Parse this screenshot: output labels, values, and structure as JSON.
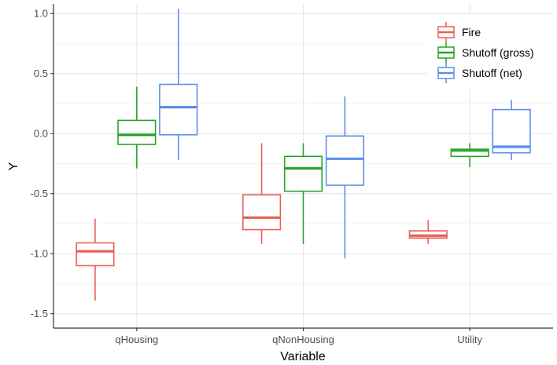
{
  "chart_data": {
    "type": "boxplot",
    "title": "",
    "xlabel": "Variable",
    "ylabel": "Y",
    "ylim": [
      -1.62,
      1.08
    ],
    "yticks": [
      1.0,
      0.5,
      0.0,
      -0.5,
      -1.0,
      -1.5
    ],
    "ytick_labels": [
      "1.0",
      "0.5",
      "0.0",
      "-0.5",
      "-1.0",
      "-1.5"
    ],
    "categories": [
      "qHousing",
      "qNonHousing",
      "Utility"
    ],
    "grid": true,
    "legend_position": "top-right",
    "series": [
      {
        "name": "Fire",
        "color": "#e8605a",
        "boxes": [
          {
            "min": -1.39,
            "q1": -1.1,
            "median": -0.98,
            "q3": -0.91,
            "max": -0.71
          },
          {
            "min": -0.92,
            "q1": -0.8,
            "median": -0.7,
            "q3": -0.51,
            "max": -0.08
          },
          {
            "min": -0.92,
            "q1": -0.87,
            "median": -0.85,
            "q3": -0.81,
            "max": -0.72
          }
        ]
      },
      {
        "name": "Shutoff (gross)",
        "color": "#29a329",
        "boxes": [
          {
            "min": -0.29,
            "q1": -0.09,
            "median": -0.01,
            "q3": 0.11,
            "max": 0.39
          },
          {
            "min": -0.92,
            "q1": -0.48,
            "median": -0.29,
            "q3": -0.19,
            "max": -0.08
          },
          {
            "min": -0.28,
            "q1": -0.19,
            "median": -0.14,
            "q3": -0.13,
            "max": -0.08
          }
        ]
      },
      {
        "name": "Shutoff (net)",
        "color": "#5b8fe8",
        "boxes": [
          {
            "min": -0.22,
            "q1": -0.01,
            "median": 0.22,
            "q3": 0.41,
            "max": 1.04
          },
          {
            "min": -1.04,
            "q1": -0.43,
            "median": -0.21,
            "q3": -0.02,
            "max": 0.31
          },
          {
            "min": -0.22,
            "q1": -0.16,
            "median": -0.11,
            "q3": 0.2,
            "max": 0.28
          }
        ]
      }
    ]
  }
}
